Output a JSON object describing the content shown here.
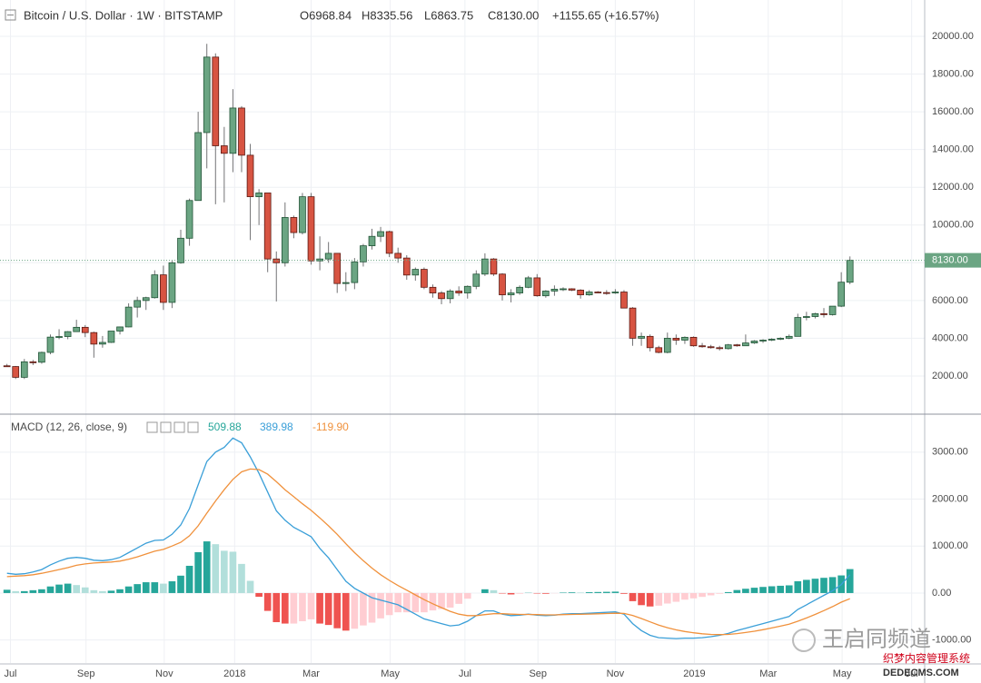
{
  "chart_data": [
    {
      "type": "candlestick",
      "title": "Bitcoin / U.S. Dollar · 1W · BITSTAMP",
      "legend": [
        "O6968.84",
        "H8335.56",
        "L6863.75",
        "C8130.00",
        "+1155.65 (+16.57%)"
      ],
      "open": [
        2540,
        2500,
        1930,
        2750,
        2730,
        3250,
        4060,
        4090,
        4350,
        4580,
        4300,
        3690,
        3780,
        4380,
        4600,
        5650,
        6000,
        6150,
        7360,
        5900,
        8000,
        9300,
        11300,
        14900,
        18900,
        14200,
        13800,
        16200,
        13700,
        11500,
        11700,
        8200,
        8000,
        10400,
        9600,
        11500,
        8100,
        8200,
        8500,
        6900,
        6950,
        8050,
        8900,
        9400,
        9650,
        8500,
        8250,
        7350,
        7650,
        6700,
        6400,
        6100,
        6500,
        6400,
        6750,
        7400,
        8200,
        7400,
        6300,
        6400,
        6700,
        7200,
        6250,
        6500,
        6600,
        6620,
        6550,
        6300,
        6450,
        6420,
        6400,
        6450,
        5600,
        4000,
        4100,
        3500,
        3250,
        4000,
        3900,
        4050,
        3600,
        3550,
        3500,
        3450,
        3650,
        3600,
        3750,
        3850,
        3900,
        3950,
        4000,
        4100,
        5100,
        5150,
        5300,
        5250,
        5700,
        6968.84
      ],
      "high": [
        2640,
        2530,
        2900,
        2850,
        3290,
        4200,
        4480,
        4380,
        4980,
        4700,
        4350,
        4120,
        4380,
        4620,
        5850,
        6200,
        6200,
        7600,
        7850,
        8100,
        9750,
        11400,
        16000,
        19600,
        19100,
        15200,
        17200,
        16300,
        14300,
        11900,
        11700,
        8600,
        11200,
        10500,
        11700,
        11700,
        9400,
        9100,
        8500,
        7500,
        8250,
        9000,
        9800,
        9900,
        9700,
        8800,
        8400,
        7750,
        7750,
        6850,
        6500,
        6600,
        6750,
        6800,
        7600,
        8500,
        8250,
        7450,
        6600,
        6800,
        7300,
        7400,
        6550,
        6800,
        6700,
        6650,
        6600,
        6550,
        6500,
        6550,
        6600,
        6550,
        5650,
        4300,
        4200,
        3600,
        4300,
        4200,
        4100,
        4100,
        3750,
        3650,
        3600,
        3700,
        3700,
        4200,
        3900,
        3950,
        4000,
        4050,
        4200,
        5300,
        5400,
        5350,
        5600,
        5700,
        7500,
        8335.56
      ],
      "low": [
        2480,
        1840,
        1840,
        2580,
        2650,
        3150,
        3950,
        3950,
        4340,
        4060,
        2970,
        3500,
        3750,
        4200,
        4580,
        5100,
        5500,
        6100,
        5500,
        5600,
        7950,
        8900,
        11300,
        13000,
        11100,
        11200,
        12800,
        12800,
        9200,
        10000,
        7500,
        5950,
        7800,
        9300,
        9500,
        7900,
        7600,
        8000,
        6400,
        6500,
        6600,
        7800,
        8700,
        9100,
        8300,
        8000,
        7100,
        7050,
        6600,
        6150,
        5800,
        5850,
        6250,
        6100,
        6600,
        7300,
        7300,
        6000,
        5900,
        6300,
        6650,
        6200,
        6150,
        6250,
        6500,
        6500,
        6100,
        6250,
        6400,
        6300,
        6350,
        5600,
        3600,
        3600,
        3300,
        3200,
        3200,
        3650,
        3700,
        3550,
        3500,
        3450,
        3350,
        3400,
        3550,
        3600,
        3700,
        3750,
        3850,
        3900,
        3950,
        4100,
        4950,
        5050,
        5100,
        5200,
        5650,
        6863.75
      ],
      "close": [
        2500,
        1930,
        2750,
        2730,
        3250,
        4060,
        4090,
        4350,
        4580,
        4300,
        3690,
        3780,
        4380,
        4600,
        5650,
        6000,
        6150,
        7360,
        5900,
        8000,
        9300,
        11300,
        14900,
        18900,
        14200,
        13800,
        16200,
        13700,
        11500,
        11700,
        8200,
        8000,
        10400,
        9600,
        11500,
        8100,
        8200,
        8500,
        6900,
        6950,
        8050,
        8900,
        9400,
        9650,
        8500,
        8250,
        7350,
        7650,
        6700,
        6400,
        6100,
        6500,
        6400,
        6750,
        7400,
        8200,
        7400,
        6300,
        6400,
        6700,
        7200,
        6250,
        6500,
        6600,
        6620,
        6550,
        6300,
        6450,
        6420,
        6400,
        6450,
        5600,
        4000,
        4100,
        3500,
        3250,
        4000,
        3900,
        4050,
        3600,
        3550,
        3500,
        3450,
        3650,
        3600,
        3750,
        3850,
        3900,
        3950,
        4000,
        4100,
        5100,
        5150,
        5300,
        5250,
        5700,
        6970,
        8130
      ],
      "last_label": "8130.00",
      "up_color": "#6ba583",
      "up_border": "#225437",
      "down_color": "#d75442",
      "down_border": "#5b1a13",
      "wick_color": "#737375",
      "xlim": [
        -0.8,
        105.6
      ],
      "xticks": [
        {
          "value": 0.4,
          "label": "Jul"
        },
        {
          "value": 9.1,
          "label": "Sep"
        },
        {
          "value": 18.1,
          "label": "Nov"
        },
        {
          "value": 26.2,
          "label": "2018"
        },
        {
          "value": 35,
          "label": "Mar"
        },
        {
          "value": 44.1,
          "label": "May"
        },
        {
          "value": 52.7,
          "label": "Jul"
        },
        {
          "value": 61.1,
          "label": "Sep"
        },
        {
          "value": 70,
          "label": "Nov"
        },
        {
          "value": 79.1,
          "label": "2019"
        },
        {
          "value": 87.6,
          "label": "Mar"
        },
        {
          "value": 96.1,
          "label": "May"
        },
        {
          "value": 104.1,
          "label": "Jul"
        }
      ],
      "ylim": [
        25,
        21925
      ],
      "yticks": [
        {
          "value": 2000,
          "label": "2000.00"
        },
        {
          "value": 4000,
          "label": "4000.00"
        },
        {
          "value": 6000,
          "label": "6000.00"
        },
        {
          "value": 8000,
          "label": "8000.00"
        },
        {
          "value": 10000,
          "label": "10000.00"
        },
        {
          "value": 12000,
          "label": "12000.00"
        },
        {
          "value": 14000,
          "label": "14000.00"
        },
        {
          "value": 16000,
          "label": "16000.00"
        },
        {
          "value": 18000,
          "label": "18000.00"
        },
        {
          "value": 20000,
          "label": "20000.00"
        }
      ],
      "grid": true
    },
    {
      "type": "macd",
      "title": "MACD (12, 26, close, 9)",
      "legend": [
        "509.88",
        "389.98",
        "-119.90"
      ],
      "xlim": [
        -0.8,
        105.6
      ],
      "ylim": [
        -1490,
        3770
      ],
      "yticks": [
        {
          "value": -1000,
          "label": "-1000.00"
        },
        {
          "value": 0,
          "label": "0.00"
        },
        {
          "value": 1000,
          "label": "1000.00"
        },
        {
          "value": 2000,
          "label": "2000.00"
        },
        {
          "value": 3000,
          "label": "3000.00"
        }
      ],
      "grid": true,
      "series": [
        {
          "kind": "histogram",
          "color": "#26a69a",
          "colors": [
            "#26a69a",
            "#b2dfdb",
            "#ffcdd2",
            "#ef5350"
          ],
          "values": [
            70,
            40,
            40,
            60,
            80,
            140,
            180,
            200,
            170,
            120,
            60,
            40,
            50,
            80,
            140,
            190,
            230,
            230,
            200,
            250,
            370,
            580,
            870,
            1100,
            1040,
            900,
            880,
            620,
            260,
            -80,
            -380,
            -620,
            -650,
            -650,
            -600,
            -560,
            -650,
            -680,
            -750,
            -800,
            -760,
            -690,
            -630,
            -540,
            -470,
            -410,
            -410,
            -410,
            -410,
            -370,
            -340,
            -310,
            -230,
            -120,
            0,
            80,
            60,
            -10,
            -30,
            -15,
            5,
            -10,
            -15,
            -5,
            10,
            15,
            12,
            18,
            22,
            26,
            30,
            -16,
            -173,
            -258,
            -286,
            -269,
            -223,
            -186,
            -141,
            -113,
            -82,
            -49,
            -15,
            20,
            64,
            91,
            113,
            130,
            144,
            155,
            164,
            251,
            281,
            305,
            324,
            339,
            375,
            509.88
          ]
        },
        {
          "kind": "line",
          "color": "#3a9fd8",
          "values": [
            420,
            400,
            410,
            450,
            500,
            600,
            680,
            740,
            760,
            740,
            700,
            690,
            710,
            760,
            860,
            960,
            1060,
            1120,
            1130,
            1250,
            1450,
            1800,
            2300,
            2800,
            3000,
            3100,
            3300,
            3200,
            2900,
            2550,
            2150,
            1750,
            1550,
            1400,
            1300,
            1200,
            950,
            750,
            500,
            250,
            100,
            0,
            -100,
            -150,
            -200,
            -250,
            -350,
            -450,
            -550,
            -600,
            -650,
            -700,
            -680,
            -600,
            -480,
            -380,
            -380,
            -450,
            -480,
            -470,
            -450,
            -470,
            -480,
            -470,
            -450,
            -440,
            -440,
            -430,
            -420,
            -410,
            -400,
            -450,
            -650,
            -800,
            -900,
            -950,
            -960,
            -970,
            -960,
            -960,
            -950,
            -930,
            -900,
            -860,
            -800,
            -750,
            -700,
            -650,
            -600,
            -550,
            -500,
            -350,
            -250,
            -150,
            -50,
            50,
            180,
            389.98
          ]
        },
        {
          "kind": "line",
          "color": "#f0913c",
          "values": [
            350,
            360,
            370,
            390,
            420,
            460,
            500,
            540,
            590,
            620,
            640,
            650,
            660,
            680,
            720,
            770,
            830,
            890,
            930,
            1000,
            1080,
            1220,
            1430,
            1700,
            1960,
            2200,
            2420,
            2580,
            2640,
            2630,
            2530,
            2370,
            2200,
            2050,
            1900,
            1760,
            1600,
            1430,
            1250,
            1050,
            860,
            690,
            530,
            390,
            270,
            160,
            60,
            -40,
            -140,
            -230,
            -310,
            -390,
            -450,
            -480,
            -480,
            -460,
            -440,
            -440,
            -450,
            -455,
            -455,
            -460,
            -465,
            -465,
            -460,
            -455,
            -452,
            -448,
            -442,
            -436,
            -430,
            -434,
            -477,
            -542,
            -614,
            -681,
            -737,
            -784,
            -819,
            -847,
            -868,
            -881,
            -885,
            -880,
            -864,
            -841,
            -813,
            -780,
            -744,
            -705,
            -664,
            -601,
            -531,
            -455,
            -374,
            -289,
            -195,
            -119.9
          ]
        }
      ]
    }
  ],
  "watermark": {
    "channel": "王启同频道",
    "site_cn": "织梦内容管理系统",
    "site": "DEDECMS.COM"
  }
}
